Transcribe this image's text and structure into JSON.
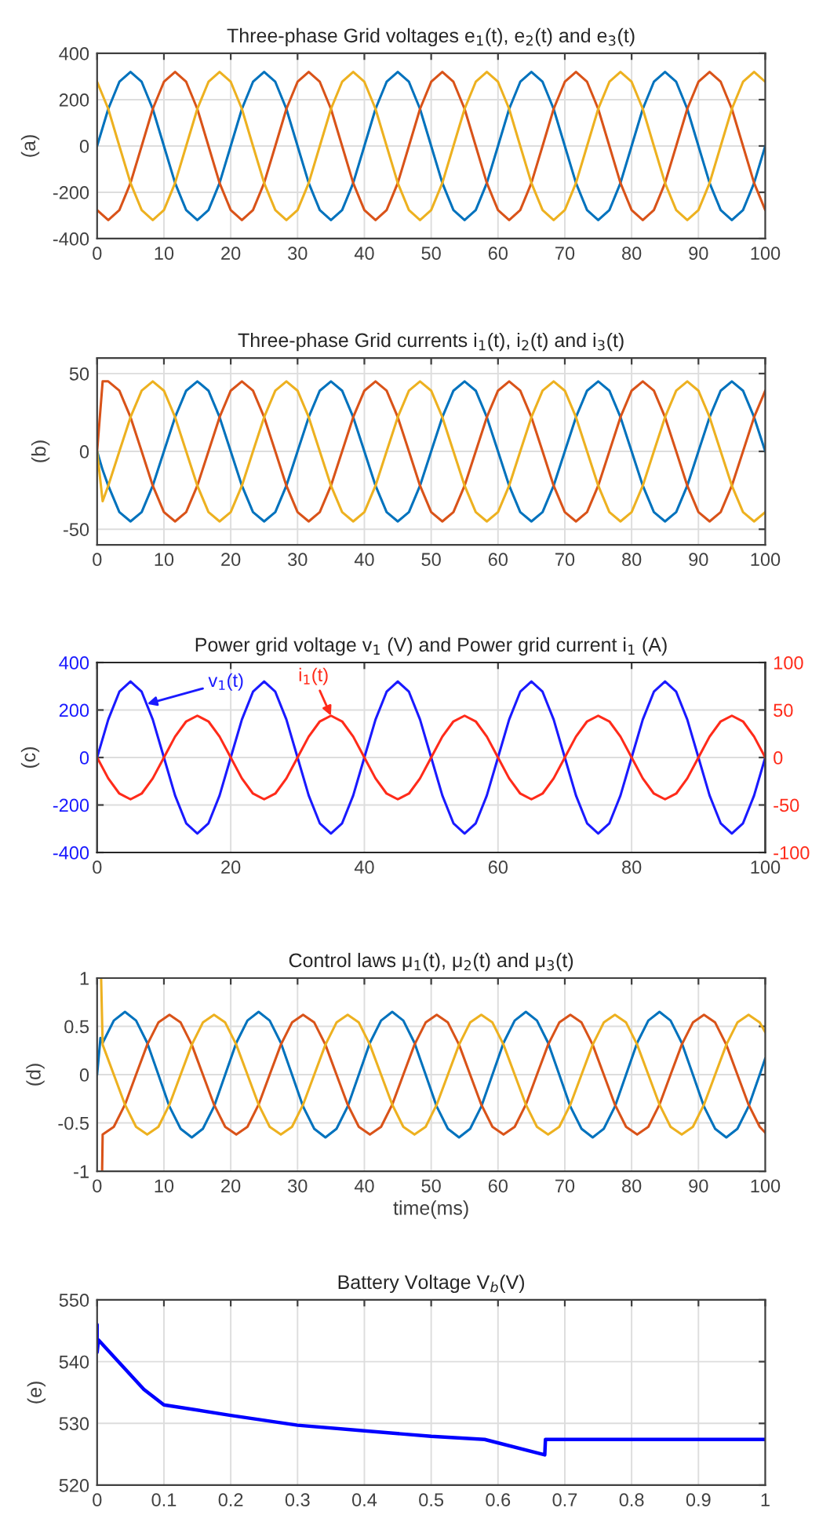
{
  "chart_data": [
    {
      "type": "line",
      "title": "Three-phase Grid voltages e$_{1}$(t), e$_{2}$(t) and e$_{3}$(t)",
      "ylabel": "(a)",
      "xlim": [
        0,
        100
      ],
      "xticks": [
        0,
        10,
        20,
        30,
        40,
        50,
        60,
        70,
        80,
        90,
        100
      ],
      "ylim": [
        -400,
        400
      ],
      "yticks": [
        -400,
        -200,
        0,
        200,
        400
      ],
      "grid": true,
      "x": [
        0,
        1.67,
        3.33,
        5,
        6.67,
        8.33,
        10,
        11.67,
        13.33,
        15,
        16.67,
        18.33,
        20,
        21.67,
        23.33,
        25,
        26.67,
        28.33,
        30,
        31.67,
        33.33,
        35,
        36.67,
        38.33,
        40,
        41.67,
        43.33,
        45,
        46.67,
        48.33,
        50,
        51.67,
        53.33,
        55,
        56.67,
        58.33,
        60,
        61.67,
        63.33,
        65,
        66.67,
        68.33,
        70,
        71.67,
        73.33,
        75,
        76.67,
        78.33,
        80,
        81.67,
        83.33,
        85,
        86.67,
        88.33,
        90,
        91.67,
        93.33,
        95,
        96.67,
        98.33,
        100
      ],
      "series": [
        {
          "color": "#0072bd",
          "values": [
            0,
            160,
            277,
            320,
            277,
            160,
            0,
            -160,
            -277,
            -320,
            -277,
            -160,
            0,
            160,
            277,
            320,
            277,
            160,
            0,
            -160,
            -277,
            -320,
            -277,
            -160,
            0,
            160,
            277,
            320,
            277,
            160,
            0,
            -160,
            -277,
            -320,
            -277,
            -160,
            0,
            160,
            277,
            320,
            277,
            160,
            0,
            -160,
            -277,
            -320,
            -277,
            -160,
            0,
            160,
            277,
            320,
            277,
            160,
            0,
            -160,
            -277,
            -320,
            -277,
            -160,
            0
          ]
        },
        {
          "color": "#d95319",
          "values": [
            -277,
            -320,
            -277,
            -160,
            0,
            160,
            277,
            320,
            277,
            160,
            0,
            -160,
            -277,
            -320,
            -277,
            -160,
            0,
            160,
            277,
            320,
            277,
            160,
            0,
            -160,
            -277,
            -320,
            -277,
            -160,
            0,
            160,
            277,
            320,
            277,
            160,
            0,
            -160,
            -277,
            -320,
            -277,
            -160,
            0,
            160,
            277,
            320,
            277,
            160,
            0,
            -160,
            -277,
            -320,
            -277,
            -160,
            0,
            160,
            277,
            320,
            277,
            160,
            0,
            -160,
            -277
          ]
        },
        {
          "color": "#edb120",
          "values": [
            277,
            160,
            0,
            -160,
            -277,
            -320,
            -277,
            -160,
            0,
            160,
            277,
            320,
            277,
            160,
            0,
            -160,
            -277,
            -320,
            -277,
            -160,
            0,
            160,
            277,
            320,
            277,
            160,
            0,
            -160,
            -277,
            -320,
            -277,
            -160,
            0,
            160,
            277,
            320,
            277,
            160,
            0,
            -160,
            -277,
            -320,
            -277,
            -160,
            0,
            160,
            277,
            320,
            277,
            160,
            0,
            -160,
            -277,
            -320,
            -277,
            -160,
            0,
            160,
            277,
            320,
            277
          ]
        }
      ]
    },
    {
      "type": "line",
      "title": "Three-phase Grid currents i$_{1}$(t), i$_{2}$(t) and i$_{3}$(t)",
      "ylabel": "(b)",
      "xlim": [
        0,
        100
      ],
      "xticks": [
        0,
        10,
        20,
        30,
        40,
        50,
        60,
        70,
        80,
        90,
        100
      ],
      "ylim": [
        -60,
        60
      ],
      "yticks": [
        -50,
        0,
        50
      ],
      "grid": true,
      "x": [
        0,
        0.83,
        1.67,
        3.33,
        5,
        6.67,
        8.33,
        10,
        11.67,
        13.33,
        15,
        16.67,
        18.33,
        20,
        21.67,
        23.33,
        25,
        26.67,
        28.33,
        30,
        31.67,
        33.33,
        35,
        36.67,
        38.33,
        40,
        41.67,
        43.33,
        45,
        46.67,
        48.33,
        50,
        51.67,
        53.33,
        55,
        56.67,
        58.33,
        60,
        61.67,
        63.33,
        65,
        66.67,
        68.33,
        70,
        71.67,
        73.33,
        75,
        76.67,
        78.33,
        80,
        81.67,
        83.33,
        85,
        86.67,
        88.33,
        90,
        91.67,
        93.33,
        95,
        96.67,
        98.33,
        100
      ],
      "series": [
        {
          "color": "#0072bd",
          "values": [
            0,
            -12,
            -22,
            -39,
            -45,
            -39,
            -22,
            0,
            22,
            39,
            45,
            39,
            22,
            0,
            -22,
            -39,
            -45,
            -39,
            -22,
            0,
            22,
            39,
            45,
            39,
            22,
            0,
            -22,
            -39,
            -45,
            -39,
            -22,
            0,
            22,
            39,
            45,
            39,
            22,
            0,
            -22,
            -39,
            -45,
            -39,
            -22,
            0,
            22,
            39,
            45,
            39,
            22,
            0,
            -22,
            -39,
            -45,
            -39,
            -22,
            0,
            22,
            39,
            45,
            39,
            22,
            0
          ]
        },
        {
          "color": "#d95319",
          "values": [
            0,
            45,
            45,
            39,
            22,
            0,
            -22,
            -39,
            -45,
            -39,
            -22,
            0,
            22,
            39,
            45,
            39,
            22,
            0,
            -22,
            -39,
            -45,
            -39,
            -22,
            0,
            22,
            39,
            45,
            39,
            22,
            0,
            -22,
            -39,
            -45,
            -39,
            -22,
            0,
            22,
            39,
            45,
            39,
            22,
            0,
            -22,
            -39,
            -45,
            -39,
            -22,
            0,
            22,
            39,
            45,
            39,
            22,
            0,
            -22,
            -39,
            -45,
            -39,
            -22,
            0,
            22,
            39
          ]
        },
        {
          "color": "#edb120",
          "values": [
            0,
            -32,
            -22,
            0,
            22,
            39,
            45,
            39,
            22,
            0,
            -22,
            -39,
            -45,
            -39,
            -22,
            0,
            22,
            39,
            45,
            39,
            22,
            0,
            -22,
            -39,
            -45,
            -39,
            -22,
            0,
            22,
            39,
            45,
            39,
            22,
            0,
            -22,
            -39,
            -45,
            -39,
            -22,
            0,
            22,
            39,
            45,
            39,
            22,
            0,
            -22,
            -39,
            -45,
            -39,
            -22,
            0,
            22,
            39,
            45,
            39,
            22,
            0,
            -22,
            -39,
            -45,
            -39
          ]
        }
      ]
    },
    {
      "type": "line",
      "title": "Power grid voltage v$_{1}$ (V) and Power grid current i$_{1}$ (A)",
      "ylabel": "(c)",
      "xlim": [
        0,
        100
      ],
      "xticks": [
        0,
        20,
        40,
        60,
        80,
        100
      ],
      "ylim": [
        -400,
        400
      ],
      "yticks": [
        -400,
        -200,
        0,
        200,
        400
      ],
      "y2lim": [
        -100,
        100
      ],
      "y2ticks": [
        -100,
        -50,
        0,
        50,
        100
      ],
      "grid": true,
      "annotations": [
        {
          "text": "v$_{1}$(t)",
          "x": 7.5,
          "y": 226
        },
        {
          "text": "i$_{1}$(t)",
          "x": 35,
          "y": 176
        }
      ],
      "x": [
        0,
        1.67,
        3.33,
        5,
        6.67,
        8.33,
        10,
        11.67,
        13.33,
        15,
        16.67,
        18.33,
        20,
        21.67,
        23.33,
        25,
        26.67,
        28.33,
        30,
        31.67,
        33.33,
        35,
        36.67,
        38.33,
        40,
        41.67,
        43.33,
        45,
        46.67,
        48.33,
        50,
        51.67,
        53.33,
        55,
        56.67,
        58.33,
        60,
        61.67,
        63.33,
        65,
        66.67,
        68.33,
        70,
        71.67,
        73.33,
        75,
        76.67,
        78.33,
        80,
        81.67,
        83.33,
        85,
        86.67,
        88.33,
        90,
        91.67,
        93.33,
        95,
        96.67,
        98.33,
        100
      ],
      "series": [
        {
          "color": "#1a1aff",
          "values": [
            0,
            160,
            277,
            320,
            277,
            160,
            0,
            -160,
            -277,
            -320,
            -277,
            -160,
            0,
            160,
            277,
            320,
            277,
            160,
            0,
            -160,
            -277,
            -320,
            -277,
            -160,
            0,
            160,
            277,
            320,
            277,
            160,
            0,
            -160,
            -277,
            -320,
            -277,
            -160,
            0,
            160,
            277,
            320,
            277,
            160,
            0,
            -160,
            -277,
            -320,
            -277,
            -160,
            0,
            160,
            277,
            320,
            277,
            160,
            0,
            -160,
            -277,
            -320,
            -277,
            -160,
            0
          ]
        },
        {
          "color": "#ff2b1a",
          "axis": "y2",
          "values": [
            0,
            -22,
            -38,
            -44,
            -38,
            -22,
            0,
            22,
            38,
            44,
            38,
            22,
            0,
            -22,
            -38,
            -44,
            -38,
            -22,
            0,
            22,
            38,
            44,
            38,
            22,
            0,
            -22,
            -38,
            -44,
            -38,
            -22,
            0,
            22,
            38,
            44,
            38,
            22,
            0,
            -22,
            -38,
            -44,
            -38,
            -22,
            0,
            22,
            38,
            44,
            38,
            22,
            0,
            -22,
            -38,
            -44,
            -38,
            -22,
            0,
            22,
            38,
            44,
            38,
            22,
            0
          ]
        }
      ]
    },
    {
      "type": "line",
      "title": "Control laws μ$_{1}$(t), μ$_{2}$(t) and μ$_{3}$(t)",
      "ylabel": "(d)",
      "xlabel": "time(ms)",
      "xlim": [
        0,
        100
      ],
      "xticks": [
        0,
        10,
        20,
        30,
        40,
        50,
        60,
        70,
        80,
        90,
        100
      ],
      "ylim": [
        -1,
        1
      ],
      "yticks": [
        -1,
        -0.5,
        0,
        0.5,
        1
      ],
      "grid": true,
      "series": [
        {
          "color": "#0072bd",
          "x": [
            0,
            0.5,
            0.83,
            2.5,
            4.17,
            5.83,
            7.5,
            9.17,
            10.83,
            12.5,
            14.17,
            15.83,
            17.5,
            19.17,
            20.83,
            22.5,
            24.17,
            25.83,
            27.5,
            29.17,
            30.83,
            32.5,
            34.17,
            35.83,
            37.5,
            39.17,
            40.83,
            42.5,
            44.17,
            45.83,
            47.5,
            49.17,
            50.83,
            52.5,
            54.17,
            55.83,
            57.5,
            59.17,
            60.83,
            62.5,
            64.17,
            65.83,
            67.5,
            69.17,
            70.83,
            72.5,
            74.17,
            75.83,
            77.5,
            79.17,
            80.83,
            82.5,
            84.17,
            85.83,
            87.5,
            89.17,
            90.83,
            92.5,
            94.17,
            95.83,
            97.5,
            99.17,
            100
          ],
          "values": [
            0,
            0.38,
            0.33,
            0.56,
            0.65,
            0.56,
            0.33,
            0,
            -0.33,
            -0.56,
            -0.65,
            -0.56,
            -0.33,
            0,
            0.33,
            0.56,
            0.65,
            0.56,
            0.33,
            0,
            -0.33,
            -0.56,
            -0.65,
            -0.56,
            -0.33,
            0,
            0.33,
            0.56,
            0.65,
            0.56,
            0.33,
            0,
            -0.33,
            -0.56,
            -0.65,
            -0.56,
            -0.33,
            0,
            0.33,
            0.56,
            0.65,
            0.56,
            0.33,
            0,
            -0.33,
            -0.56,
            -0.65,
            -0.56,
            -0.33,
            0,
            0.33,
            0.56,
            0.65,
            0.56,
            0.33,
            0,
            -0.33,
            -0.56,
            -0.65,
            -0.56,
            -0.33,
            0,
            0.17
          ]
        },
        {
          "color": "#d95319",
          "x": [
            0.75,
            0.83,
            2.5,
            4.17,
            5.83,
            7.5,
            9.17,
            10.83,
            12.5,
            14.17,
            15.83,
            17.5,
            19.17,
            20.83,
            22.5,
            24.17,
            25.83,
            27.5,
            29.17,
            30.83,
            32.5,
            34.17,
            35.83,
            37.5,
            39.17,
            40.83,
            42.5,
            44.17,
            45.83,
            47.5,
            49.17,
            50.83,
            52.5,
            54.17,
            55.83,
            57.5,
            59.17,
            60.83,
            62.5,
            64.17,
            65.83,
            67.5,
            69.17,
            70.83,
            72.5,
            74.17,
            75.83,
            77.5,
            79.17,
            80.83,
            82.5,
            84.17,
            85.83,
            87.5,
            89.17,
            90.83,
            92.5,
            94.17,
            95.83,
            97.5,
            99.17,
            100
          ],
          "values": [
            -1,
            -0.62,
            -0.54,
            -0.31,
            0,
            0.31,
            0.54,
            0.62,
            0.54,
            0.31,
            0,
            -0.31,
            -0.54,
            -0.62,
            -0.54,
            -0.31,
            0,
            0.31,
            0.54,
            0.62,
            0.54,
            0.31,
            0,
            -0.31,
            -0.54,
            -0.62,
            -0.54,
            -0.31,
            0,
            0.31,
            0.54,
            0.62,
            0.54,
            0.31,
            0,
            -0.31,
            -0.54,
            -0.62,
            -0.54,
            -0.31,
            0,
            0.31,
            0.54,
            0.62,
            0.54,
            0.31,
            0,
            -0.31,
            -0.54,
            -0.62,
            -0.54,
            -0.31,
            0,
            0.31,
            0.54,
            0.62,
            0.54,
            0.31,
            0,
            -0.31,
            -0.54,
            -0.6
          ]
        },
        {
          "color": "#edb120",
          "x": [
            0.6,
            0.83,
            2.5,
            4.17,
            5.83,
            7.5,
            9.17,
            10.83,
            12.5,
            14.17,
            15.83,
            17.5,
            19.17,
            20.83,
            22.5,
            24.17,
            25.83,
            27.5,
            29.17,
            30.83,
            32.5,
            34.17,
            35.83,
            37.5,
            39.17,
            40.83,
            42.5,
            44.17,
            45.83,
            47.5,
            49.17,
            50.83,
            52.5,
            54.17,
            55.83,
            57.5,
            59.17,
            60.83,
            62.5,
            64.17,
            65.83,
            67.5,
            69.17,
            70.83,
            72.5,
            74.17,
            75.83,
            77.5,
            79.17,
            80.83,
            82.5,
            84.17,
            85.83,
            87.5,
            89.17,
            90.83,
            92.5,
            94.17,
            95.83,
            97.5,
            99.17,
            100
          ],
          "values": [
            1,
            0.31,
            0,
            -0.31,
            -0.54,
            -0.62,
            -0.54,
            -0.31,
            0,
            0.31,
            0.54,
            0.62,
            0.54,
            0.31,
            0,
            -0.31,
            -0.54,
            -0.62,
            -0.54,
            -0.31,
            0,
            0.31,
            0.54,
            0.62,
            0.54,
            0.31,
            0,
            -0.31,
            -0.54,
            -0.62,
            -0.54,
            -0.31,
            0,
            0.31,
            0.54,
            0.62,
            0.54,
            0.31,
            0,
            -0.31,
            -0.54,
            -0.62,
            -0.54,
            -0.31,
            0,
            0.31,
            0.54,
            0.62,
            0.54,
            0.31,
            0,
            -0.31,
            -0.54,
            -0.62,
            -0.54,
            -0.31,
            0,
            0.31,
            0.54,
            0.62,
            0.54,
            0.44
          ]
        }
      ]
    },
    {
      "type": "line",
      "title": "Battery Voltage V$_{b}$(V)",
      "ylabel": "(e)",
      "xlim": [
        0,
        1
      ],
      "xticks": [
        0,
        0.1,
        0.2,
        0.3,
        0.4,
        0.5,
        0.6,
        0.7,
        0.8,
        0.9,
        1
      ],
      "ylim": [
        520,
        550
      ],
      "yticks": [
        520,
        530,
        540,
        550
      ],
      "grid": true,
      "x": [
        0,
        0,
        0.002,
        0.07,
        0.1,
        0.2,
        0.3,
        0.4,
        0.5,
        0.58,
        0.67,
        0.671,
        1
      ],
      "series": [
        {
          "color": "#0000ff",
          "values": [
            546,
            541.5,
            543.5,
            535.5,
            533,
            531.3,
            529.7,
            528.8,
            527.9,
            527.4,
            524.9,
            527.4,
            527.4
          ]
        }
      ]
    }
  ]
}
